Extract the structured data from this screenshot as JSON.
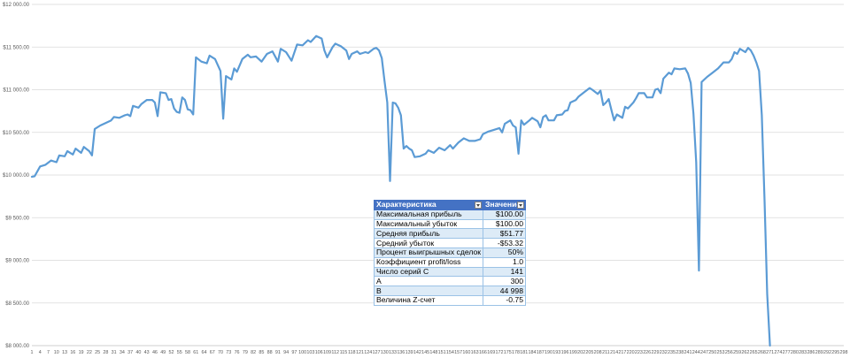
{
  "chart_data": {
    "type": "line",
    "title": "",
    "xlabel": "",
    "ylabel": "",
    "ylim": [
      8000,
      12000
    ],
    "xlim": [
      1,
      298
    ],
    "grid": true,
    "legend": "none",
    "y_ticks": [
      "$8 000.00",
      "$8 500.00",
      "$9 000.00",
      "$9 500.00",
      "$10 000.00",
      "$10 500.00",
      "$11 000.00",
      "$11 500.00",
      "$12 000.00"
    ],
    "y_tick_values": [
      8000,
      8500,
      9000,
      9500,
      10000,
      10500,
      11000,
      11500,
      12000
    ],
    "x_tick_start": 1,
    "x_tick_step": 3,
    "x_tick_count": 100,
    "series": [
      {
        "color": "#5b9bd5",
        "points": [
          [
            1,
            9980
          ],
          [
            2,
            9985
          ],
          [
            4,
            10100
          ],
          [
            6,
            10120
          ],
          [
            8,
            10170
          ],
          [
            10,
            10150
          ],
          [
            11,
            10230
          ],
          [
            13,
            10220
          ],
          [
            14,
            10280
          ],
          [
            16,
            10240
          ],
          [
            17,
            10310
          ],
          [
            19,
            10260
          ],
          [
            20,
            10330
          ],
          [
            22,
            10280
          ],
          [
            23,
            10230
          ],
          [
            24,
            10540
          ],
          [
            26,
            10580
          ],
          [
            28,
            10610
          ],
          [
            30,
            10640
          ],
          [
            31,
            10680
          ],
          [
            33,
            10670
          ],
          [
            35,
            10700
          ],
          [
            36,
            10710
          ],
          [
            37,
            10690
          ],
          [
            38,
            10810
          ],
          [
            40,
            10790
          ],
          [
            41,
            10830
          ],
          [
            43,
            10880
          ],
          [
            45,
            10880
          ],
          [
            46,
            10850
          ],
          [
            47,
            10690
          ],
          [
            48,
            10970
          ],
          [
            50,
            10960
          ],
          [
            51,
            10880
          ],
          [
            52,
            10890
          ],
          [
            53,
            10780
          ],
          [
            54,
            10740
          ],
          [
            55,
            10730
          ],
          [
            56,
            10910
          ],
          [
            57,
            10880
          ],
          [
            58,
            10770
          ],
          [
            59,
            10760
          ],
          [
            60,
            10710
          ],
          [
            61,
            11380
          ],
          [
            63,
            11330
          ],
          [
            65,
            11310
          ],
          [
            66,
            11400
          ],
          [
            68,
            11360
          ],
          [
            70,
            11220
          ],
          [
            71,
            10660
          ],
          [
            72,
            11160
          ],
          [
            74,
            11120
          ],
          [
            75,
            11250
          ],
          [
            76,
            11210
          ],
          [
            78,
            11360
          ],
          [
            80,
            11410
          ],
          [
            81,
            11380
          ],
          [
            83,
            11390
          ],
          [
            85,
            11330
          ],
          [
            87,
            11420
          ],
          [
            89,
            11450
          ],
          [
            91,
            11330
          ],
          [
            92,
            11480
          ],
          [
            94,
            11440
          ],
          [
            96,
            11340
          ],
          [
            98,
            11530
          ],
          [
            100,
            11520
          ],
          [
            102,
            11580
          ],
          [
            103,
            11560
          ],
          [
            105,
            11630
          ],
          [
            107,
            11600
          ],
          [
            108,
            11460
          ],
          [
            109,
            11380
          ],
          [
            111,
            11500
          ],
          [
            112,
            11540
          ],
          [
            114,
            11510
          ],
          [
            116,
            11460
          ],
          [
            117,
            11360
          ],
          [
            118,
            11420
          ],
          [
            120,
            11450
          ],
          [
            121,
            11420
          ],
          [
            123,
            11440
          ],
          [
            124,
            11430
          ],
          [
            126,
            11480
          ],
          [
            127,
            11490
          ],
          [
            128,
            11460
          ],
          [
            129,
            11370
          ],
          [
            130,
            11100
          ],
          [
            131,
            10850
          ],
          [
            132,
            9930
          ],
          [
            133,
            10850
          ],
          [
            134,
            10840
          ],
          [
            135,
            10790
          ],
          [
            136,
            10700
          ],
          [
            137,
            10310
          ],
          [
            138,
            10340
          ],
          [
            139,
            10310
          ],
          [
            140,
            10290
          ],
          [
            141,
            10210
          ],
          [
            143,
            10220
          ],
          [
            145,
            10250
          ],
          [
            146,
            10290
          ],
          [
            148,
            10260
          ],
          [
            150,
            10320
          ],
          [
            152,
            10290
          ],
          [
            154,
            10350
          ],
          [
            155,
            10310
          ],
          [
            157,
            10380
          ],
          [
            159,
            10430
          ],
          [
            161,
            10400
          ],
          [
            163,
            10400
          ],
          [
            165,
            10420
          ],
          [
            166,
            10480
          ],
          [
            168,
            10510
          ],
          [
            170,
            10530
          ],
          [
            172,
            10550
          ],
          [
            173,
            10500
          ],
          [
            174,
            10600
          ],
          [
            176,
            10640
          ],
          [
            177,
            10580
          ],
          [
            178,
            10560
          ],
          [
            179,
            10250
          ],
          [
            180,
            10640
          ],
          [
            181,
            10590
          ],
          [
            183,
            10640
          ],
          [
            184,
            10670
          ],
          [
            186,
            10630
          ],
          [
            187,
            10560
          ],
          [
            188,
            10680
          ],
          [
            189,
            10700
          ],
          [
            190,
            10640
          ],
          [
            192,
            10640
          ],
          [
            193,
            10700
          ],
          [
            195,
            10710
          ],
          [
            196,
            10750
          ],
          [
            197,
            10760
          ],
          [
            198,
            10850
          ],
          [
            200,
            10880
          ],
          [
            201,
            10920
          ],
          [
            203,
            10970
          ],
          [
            205,
            11020
          ],
          [
            206,
            11000
          ],
          [
            208,
            10950
          ],
          [
            209,
            10990
          ],
          [
            210,
            10820
          ],
          [
            211,
            10850
          ],
          [
            212,
            10890
          ],
          [
            213,
            10760
          ],
          [
            214,
            10640
          ],
          [
            215,
            10710
          ],
          [
            217,
            10670
          ],
          [
            218,
            10800
          ],
          [
            219,
            10780
          ],
          [
            221,
            10850
          ],
          [
            222,
            10900
          ],
          [
            223,
            10960
          ],
          [
            225,
            10960
          ],
          [
            226,
            10910
          ],
          [
            228,
            10910
          ],
          [
            229,
            11000
          ],
          [
            230,
            11010
          ],
          [
            231,
            10960
          ],
          [
            232,
            11130
          ],
          [
            234,
            11200
          ],
          [
            235,
            11180
          ],
          [
            236,
            11250
          ],
          [
            238,
            11240
          ],
          [
            240,
            11250
          ],
          [
            241,
            11190
          ],
          [
            242,
            11080
          ],
          [
            243,
            10720
          ],
          [
            244,
            10150
          ],
          [
            245,
            8880
          ],
          [
            246,
            11090
          ],
          [
            248,
            11150
          ],
          [
            250,
            11200
          ],
          [
            252,
            11250
          ],
          [
            254,
            11320
          ],
          [
            256,
            11320
          ],
          [
            257,
            11360
          ],
          [
            258,
            11440
          ],
          [
            259,
            11420
          ],
          [
            260,
            11480
          ],
          [
            262,
            11440
          ],
          [
            263,
            11490
          ],
          [
            264,
            11460
          ],
          [
            265,
            11400
          ],
          [
            266,
            11320
          ],
          [
            267,
            11220
          ],
          [
            268,
            10700
          ],
          [
            269,
            9700
          ],
          [
            270,
            8600
          ],
          [
            271,
            8000
          ]
        ]
      }
    ]
  },
  "stats_table": {
    "headers": [
      "Характеристика",
      "Значение"
    ],
    "rows": [
      [
        "Максимальная прибыль",
        "$100.00"
      ],
      [
        "Максимальный убыток",
        "$100.00"
      ],
      [
        "Средняя прибыль",
        "$51.77"
      ],
      [
        "Средний убыток",
        "-$53.32"
      ],
      [
        "Процент выигрышных сделок",
        "50%"
      ],
      [
        "Коэффициент profit/loss",
        "1.0"
      ],
      [
        "Число серий С",
        "141"
      ],
      [
        "A",
        "300"
      ],
      [
        "B",
        "44 998"
      ],
      [
        "Величина Z-счет",
        "-0.75"
      ]
    ]
  }
}
